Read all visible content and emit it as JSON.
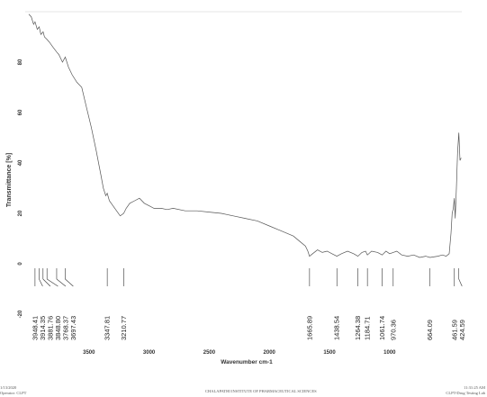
{
  "chart_data": {
    "type": "line",
    "xlabel": "Wavenumber cm-1",
    "ylabel": "Transmittance [%]",
    "xlim": [
      4000,
      400
    ],
    "ylim": [
      -20,
      100
    ],
    "x_reversed": true,
    "x_ticks": [
      3500,
      3000,
      2500,
      2000,
      1500,
      1000
    ],
    "y_ticks": [
      80,
      60,
      40,
      20,
      0,
      -20
    ],
    "grid": false,
    "series": [
      {
        "x": [
          4000,
          3980,
          3960,
          3948,
          3930,
          3914,
          3900,
          3881,
          3870,
          3849,
          3830,
          3800,
          3768,
          3750,
          3720,
          3697,
          3670,
          3640,
          3600,
          3560,
          3520,
          3480,
          3440,
          3400,
          3380,
          3360,
          3348,
          3330,
          3300,
          3270,
          3240,
          3211,
          3190,
          3160,
          3120,
          3080,
          3040,
          3000,
          2960,
          2900,
          2850,
          2800,
          2700,
          2600,
          2500,
          2400,
          2300,
          2200,
          2100,
          2000,
          1900,
          1800,
          1750,
          1700,
          1680,
          1666,
          1640,
          1600,
          1560,
          1520,
          1480,
          1439,
          1400,
          1350,
          1300,
          1264,
          1230,
          1200,
          1185,
          1150,
          1100,
          1062,
          1030,
          1000,
          970,
          940,
          900,
          850,
          800,
          750,
          700,
          664,
          600,
          560,
          530,
          505,
          490,
          480,
          470,
          462,
          455,
          445,
          435,
          425,
          415,
          405
        ],
        "y": [
          99,
          98,
          95,
          96,
          93,
          94,
          91,
          92,
          90,
          89,
          88,
          86,
          84,
          83,
          80,
          82,
          78,
          75,
          72,
          70,
          62,
          54,
          45,
          35,
          30,
          27,
          28,
          25,
          23,
          21,
          19,
          20,
          22,
          24,
          25,
          26,
          24,
          23,
          22,
          22,
          21.5,
          22,
          21,
          21,
          20.5,
          20,
          19,
          18,
          17,
          15,
          13,
          11,
          9,
          7,
          5,
          3,
          4,
          5.5,
          4.5,
          5,
          4,
          3,
          4,
          5,
          4,
          3,
          4.5,
          5,
          3.5,
          5,
          4.5,
          3.5,
          5,
          4,
          4.5,
          5,
          3.5,
          3,
          3.5,
          2.5,
          3,
          2.5,
          3,
          3.5,
          3,
          4,
          12,
          20,
          22,
          26,
          18,
          30,
          44,
          52,
          41,
          42
        ]
      }
    ],
    "peak_labels": [
      "3948.41",
      "3914.35",
      "3881.76",
      "3848.80",
      "3768.37",
      "3697.43",
      "3347.81",
      "3210.77",
      "1665.89",
      "1438.54",
      "1264.38",
      "1184.71",
      "1061.74",
      "970.36",
      "664.09",
      "461.59",
      "424.59"
    ],
    "peak_positions": [
      3948.41,
      3914.35,
      3881.76,
      3848.8,
      3768.37,
      3697.43,
      3347.81,
      3210.77,
      1665.89,
      1438.54,
      1264.38,
      1184.71,
      1061.74,
      970.36,
      664.09,
      461.59,
      424.59
    ]
  },
  "footer": {
    "left_line1": "1/13/2020",
    "left_line2": "Operator: CLPT",
    "center": "CHALAPATHI INSTITUTE OF PHARMACEUTICAL SCIENCES",
    "right_line1": "11:31:25 AM",
    "right_line2": "CLPT-Drug Testing Lab"
  }
}
